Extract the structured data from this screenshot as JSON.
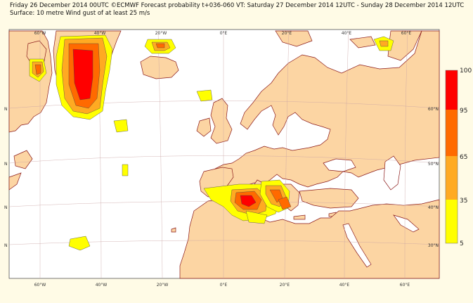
{
  "header": {
    "line1": "Friday 26 December 2014 00UTC ©ECMWF Forecast probability t+036-060 VT: Saturday 27 December 2014 12UTC - Sunday 28 December 2014 12UTC",
    "line2": "Surface: 10 metre Wind gust of at least 25 m/s"
  },
  "map": {
    "longitude_labels": [
      "60°W",
      "40°W",
      "20°W",
      "0°E",
      "20°E",
      "40°E",
      "60°E"
    ],
    "latitude_labels": [
      "60°N",
      "50°N",
      "40°N",
      "30°N"
    ],
    "left_edge_labels": [
      "N",
      "N",
      "N",
      "N"
    ],
    "land_color": "#fcd5a3",
    "sea_color": "#ffffff",
    "coast_color": "#8b1a1a"
  },
  "legend": {
    "levels": [
      "100",
      "95",
      "65",
      "35",
      "5"
    ],
    "colors": [
      "#ff0000",
      "#ff6a00",
      "#ffaa22",
      "#ffff00"
    ]
  }
}
